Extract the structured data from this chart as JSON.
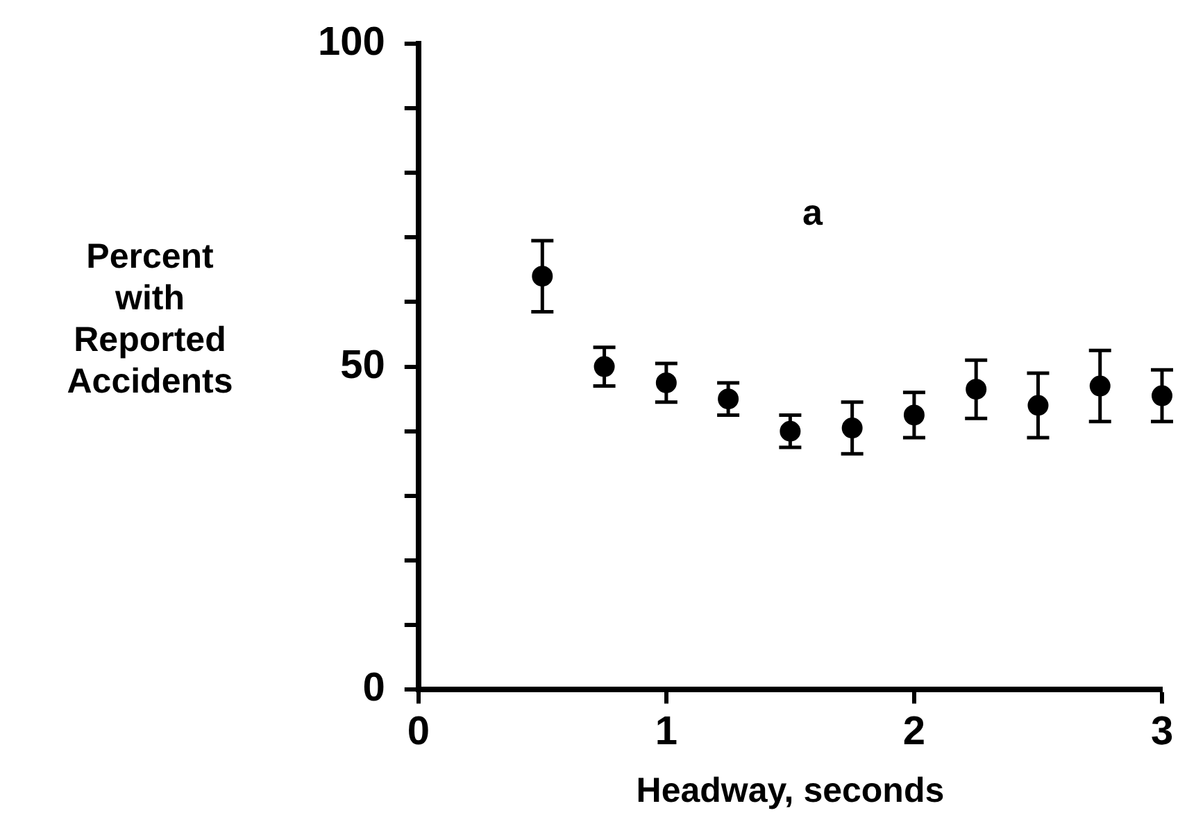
{
  "chart_data": {
    "type": "scatter",
    "xlabel": "Headway, seconds",
    "ylabel": "Percent with Reported Accidents",
    "x": [
      0.5,
      0.75,
      1,
      1.25,
      1.5,
      1.75,
      2,
      2.25,
      2.5,
      2.75,
      3
    ],
    "series": [
      {
        "color": "#000000",
        "values": [
          64,
          50,
          47.5,
          45,
          40,
          40.5,
          42.5,
          46.5,
          44,
          47,
          45.5
        ],
        "errors": [
          5.5,
          3,
          3,
          2.5,
          2.5,
          4,
          3.5,
          4.5,
          5,
          5.5,
          4
        ]
      }
    ],
    "xlim": [
      0,
      3
    ],
    "xticks": [
      0,
      1,
      2,
      3
    ],
    "ylim": [
      0,
      100
    ],
    "yticks": [
      0,
      {
        "value": 10,
        "label": null
      },
      {
        "value": 20,
        "label": null
      },
      {
        "value": 30,
        "label": null
      },
      {
        "value": 40,
        "label": null
      },
      50,
      {
        "value": 60,
        "label": null
      },
      {
        "value": 70,
        "label": null
      },
      {
        "value": 80,
        "label": null
      },
      {
        "value": 90,
        "label": null
      },
      100
    ],
    "annotations": [
      "a"
    ],
    "grid": false,
    "legend": false,
    "marker": "circle"
  }
}
